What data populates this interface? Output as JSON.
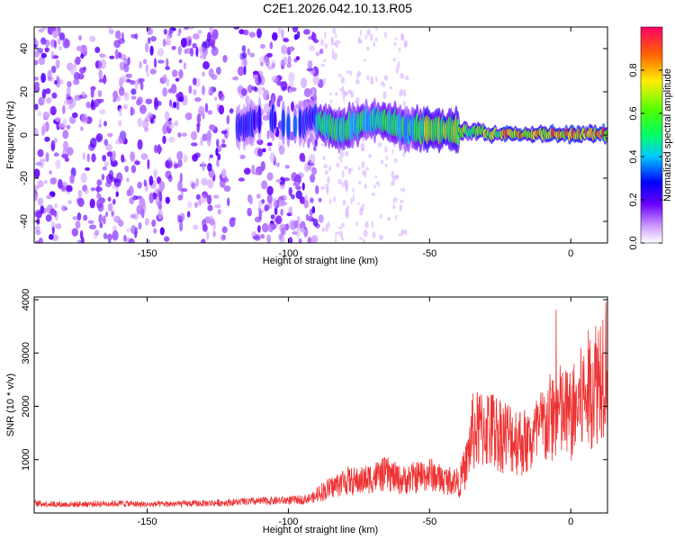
{
  "title": "C2E1.2026.042.10.13.R05",
  "chart_data": [
    {
      "type": "heatmap",
      "xlabel": "Height of straight line (km)",
      "ylabel": "Frequency (Hz)",
      "xlim": [
        -190,
        13
      ],
      "ylim": [
        -50,
        50
      ],
      "xticks": [
        -150,
        -100,
        -50,
        0
      ],
      "xtick_labels": [
        "-150",
        "-100",
        "-50",
        "0"
      ],
      "yticks": [
        -40,
        -20,
        0,
        20,
        40
      ],
      "ytick_labels": [
        "-40",
        "-20",
        "0",
        "20",
        "40"
      ],
      "colorbar": {
        "label": "Normalized spectral amplitude",
        "range": [
          0,
          1
        ],
        "ticks": [
          0.0,
          0.2,
          0.4,
          0.6,
          0.8
        ],
        "tick_labels": [
          "0.0",
          "0.2",
          "0.4",
          "0.6",
          "0.8"
        ]
      },
      "features": [
        {
          "name": "broadband noise",
          "x_range": [
            -190,
            -90
          ],
          "freq_range": [
            -50,
            50
          ],
          "amplitude": 0.15
        },
        {
          "name": "sparse noise",
          "x_range": [
            -90,
            -55
          ],
          "freq_range": [
            -50,
            50
          ],
          "amplitude": 0.05
        },
        {
          "name": "signal band",
          "x_range": [
            -118,
            13
          ],
          "freq_center": [
            8,
            0
          ],
          "amplitude": [
            0.3,
            0.95
          ]
        }
      ]
    },
    {
      "type": "line",
      "xlabel": "Height of straight line (km)",
      "ylabel": "SNR (10 * v/v)",
      "xlim": [
        -190,
        13
      ],
      "ylim": [
        0,
        4050
      ],
      "xticks": [
        -150,
        -100,
        -50,
        0
      ],
      "xtick_labels": [
        "-150",
        "-100",
        "-50",
        "0"
      ],
      "yticks": [
        1000,
        2000,
        3000,
        4000
      ],
      "ytick_labels": [
        "1000",
        "2000",
        "3000",
        "4000"
      ],
      "series": [
        {
          "name": "SNR",
          "color": "#ee3333",
          "x": [
            -190,
            -180,
            -170,
            -160,
            -150,
            -140,
            -130,
            -120,
            -110,
            -100,
            -95,
            -90,
            -85,
            -80,
            -75,
            -70,
            -65,
            -60,
            -55,
            -50,
            -45,
            -40,
            -37,
            -35,
            -30,
            -25,
            -20,
            -15,
            -10,
            -5,
            0,
            5,
            10,
            13
          ],
          "y": [
            180,
            160,
            170,
            180,
            160,
            170,
            180,
            200,
            220,
            240,
            250,
            300,
            380,
            500,
            480,
            550,
            600,
            500,
            550,
            600,
            500,
            500,
            900,
            1500,
            1600,
            1500,
            1400,
            1300,
            1600,
            1900,
            1800,
            2200,
            2600,
            3000
          ]
        }
      ]
    }
  ]
}
